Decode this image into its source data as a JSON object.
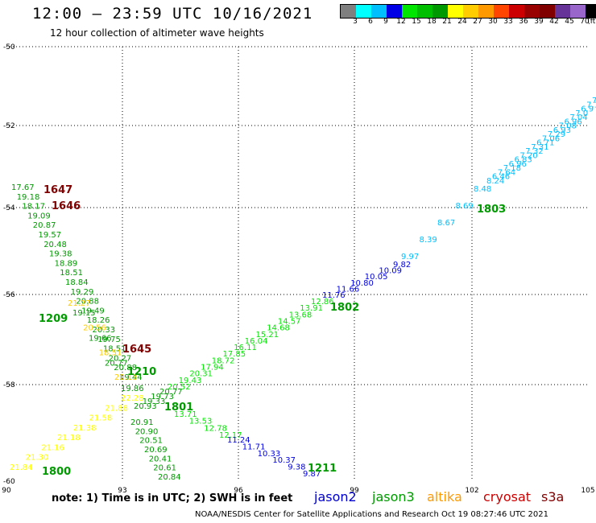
{
  "header": {
    "title": "12:00 — 23:59 UTC 10/16/2021",
    "subtitle": "12 hour collection of altimeter wave heights"
  },
  "legend": {
    "colors": [
      "#7f7f7f",
      "#00ffff",
      "#00bfff",
      "#0000e6",
      "#00e600",
      "#00bf00",
      "#009900",
      "#ffff00",
      "#ffcc00",
      "#ff9900",
      "#ff4500",
      "#cc0000",
      "#990000",
      "#800000",
      "#663399",
      "#9966cc",
      "#000000"
    ],
    "ticks": [
      "3",
      "6",
      "9",
      "12",
      "15",
      "18",
      "21",
      "24",
      "27",
      "30",
      "33",
      "36",
      "39",
      "42",
      "45",
      "70",
      "(ft)"
    ]
  },
  "map": {
    "lon_ticks": [
      "90",
      "93",
      "96",
      "99",
      "102",
      "105"
    ],
    "lat_ticks": [
      "-50",
      "-52",
      "-54",
      "-56",
      "-58",
      "-60"
    ],
    "lon_range": [
      90,
      105
    ],
    "lat_range": [
      -50,
      -60
    ]
  },
  "chart_data": {
    "type": "scatter",
    "tracks": [
      {
        "color": "#00bfff",
        "labels": [
          "7.6",
          "7.1",
          "6.9",
          "7.0",
          "7.04",
          "6.96",
          "7.08",
          "6.93",
          "7.29",
          "7.06",
          "6.71",
          "7.31",
          "7.32",
          "7.20",
          "6.83",
          "6.96",
          "7.18",
          "7.64",
          "6.46",
          "8.24"
        ]
      },
      {
        "color": "#00bfff",
        "labels": [
          "8.48",
          "8.69",
          "8.67",
          "8.39",
          "9.97"
        ]
      },
      {
        "color": "#0000e6",
        "labels": [
          "9.82",
          "10.09",
          "10.05",
          "10.80",
          "11.66",
          "11.76"
        ]
      },
      {
        "color": "#00e600",
        "labels": [
          "12.86",
          "13.91",
          "13.68",
          "14.57",
          "14.68",
          "15.21",
          "16.04",
          "16.11",
          "17.85",
          "18.72",
          "17.94",
          "20.31",
          "19.43",
          "20.52"
        ]
      },
      {
        "color": "#009900",
        "labels": [
          "20.77",
          "19.73",
          "19.33",
          "20.93"
        ]
      },
      {
        "color": "#009900",
        "labels": [
          "17.67",
          "19.18",
          "18.17",
          "19.09",
          "20.87",
          "19.57",
          "20.48",
          "19.38",
          "18.89",
          "18.51",
          "18.84",
          "19.29",
          "20.88",
          "19.49",
          "18.26",
          "20.33",
          "19.75",
          "18.51",
          "20.27",
          "20.88",
          "19.44"
        ]
      },
      {
        "color": "#ffcc00",
        "labels": [
          "21.27",
          "20.56",
          "18.51",
          "20.13"
        ]
      },
      {
        "color": "#009900",
        "labels": [
          "19.15",
          "19.66",
          "20.77",
          "19.86"
        ]
      },
      {
        "color": "#00e600",
        "labels": [
          "13.71",
          "13.53",
          "12.78",
          "12.17"
        ]
      },
      {
        "color": "#0000e6",
        "labels": [
          "11.24",
          "11.71",
          "10.33",
          "10.37",
          "9.38",
          "9.87"
        ]
      },
      {
        "color": "#009900",
        "labels": [
          "20.91",
          "20.90",
          "20.51",
          "20.69",
          "20.41",
          "20.61",
          "20.84"
        ]
      },
      {
        "color": "#ffff00",
        "labels": [
          "21.84",
          "21.30",
          "21.16",
          "21.18",
          "21.38",
          "21.58",
          "21.88",
          "22.28"
        ]
      }
    ],
    "time_labels": [
      {
        "text": "1647",
        "color": "#800000"
      },
      {
        "text": "1646",
        "color": "#800000"
      },
      {
        "text": "1645",
        "color": "#800000"
      },
      {
        "text": "1803",
        "color": "#009900"
      },
      {
        "text": "1802",
        "color": "#009900"
      },
      {
        "text": "1801",
        "color": "#009900"
      },
      {
        "text": "1800",
        "color": "#009900"
      },
      {
        "text": "1209",
        "color": "#009900"
      },
      {
        "text": "1210",
        "color": "#009900"
      },
      {
        "text": "1211",
        "color": "#009900"
      }
    ]
  },
  "footer": {
    "note": "note: 1) Time is in UTC; 2) SWH is in feet",
    "satellites": [
      {
        "name": "jason2",
        "color": "#0000cc"
      },
      {
        "name": "jason3",
        "color": "#009900"
      },
      {
        "name": "altika",
        "color": "#ff9900"
      },
      {
        "name": "cryosat",
        "color": "#cc0000"
      },
      {
        "name": "s3a",
        "color": "#800000"
      }
    ],
    "credit": "NOAA/NESDIS Center for Satellite Applications and Research    Oct 19 08:27:46 UTC 2021"
  }
}
